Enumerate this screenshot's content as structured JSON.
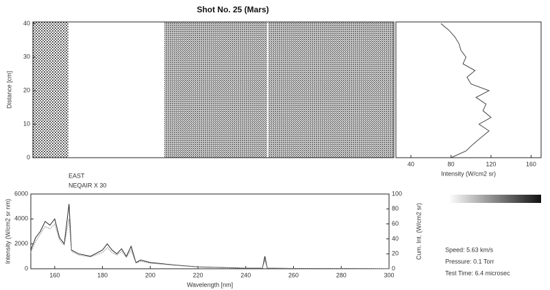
{
  "chart_data": [
    {
      "type": "image",
      "title": "Shot No. 25 (Mars)",
      "ylabel": "Distance [cm]",
      "ylim": [
        0,
        40.5
      ],
      "yticks": [
        0,
        10,
        20,
        30,
        40
      ]
    },
    {
      "type": "profile",
      "xlabel": "Intensity (W/cm2 sr)",
      "xlim": [
        25,
        170
      ],
      "xticks": [
        40,
        80,
        120,
        160
      ],
      "ylim": [
        0,
        40.5
      ],
      "y": [
        0,
        2,
        4,
        6,
        8,
        10,
        12,
        14,
        16,
        18,
        20,
        22,
        24,
        26,
        28,
        30,
        32,
        34,
        36,
        38,
        40
      ],
      "values": [
        80,
        95,
        102,
        110,
        118,
        108,
        120,
        112,
        115,
        105,
        118,
        100,
        96,
        104,
        92,
        95,
        90,
        88,
        84,
        78,
        70
      ],
      "color": "#444"
    },
    {
      "type": "line",
      "xlabel": "Wavelength [nm]",
      "ylabel": "Intensity (W/cm2 sr nm)",
      "y2label": "Cum. Int. (W/cm2 sr)",
      "annotations": [
        "EAST",
        "NEQAIR X 30"
      ],
      "xlim": [
        150,
        300
      ],
      "xticks": [
        160,
        180,
        200,
        220,
        240,
        260,
        280,
        300
      ],
      "ylim": [
        0,
        6000
      ],
      "yticks": [
        0,
        2000,
        4000,
        6000
      ],
      "y2lim": [
        0,
        100
      ],
      "y2ticks": [
        0,
        20,
        40,
        60,
        80,
        100
      ],
      "x": [
        150,
        152,
        154,
        156,
        158,
        160,
        162,
        164,
        166,
        167,
        170,
        175,
        180,
        182,
        184,
        186,
        188,
        190,
        192,
        194,
        196,
        200,
        210,
        220,
        240,
        247,
        248,
        249,
        260,
        280,
        300
      ],
      "series": [
        {
          "color": "#222",
          "values": [
            1500,
            2500,
            3000,
            3800,
            3500,
            4000,
            2500,
            2000,
            5200,
            1500,
            1200,
            1000,
            1500,
            2000,
            1500,
            1200,
            1600,
            1000,
            1800,
            500,
            700,
            500,
            300,
            150,
            50,
            50,
            1000,
            50,
            30,
            20,
            10
          ]
        },
        {
          "color": "#999",
          "values": [
            1300,
            2200,
            2800,
            3400,
            3200,
            3600,
            2300,
            1900,
            4000,
            1400,
            1100,
            950,
            1300,
            1700,
            1300,
            1100,
            1400,
            900,
            1500,
            450,
            600,
            450,
            280,
            140,
            45,
            45,
            700,
            45,
            25,
            15,
            8
          ]
        }
      ]
    },
    {
      "type": "text",
      "lines": [
        "Speed: 5.63 km/s",
        "Pressure: 0.1 Torr",
        "Test Time: 6.4 microsec"
      ]
    }
  ]
}
